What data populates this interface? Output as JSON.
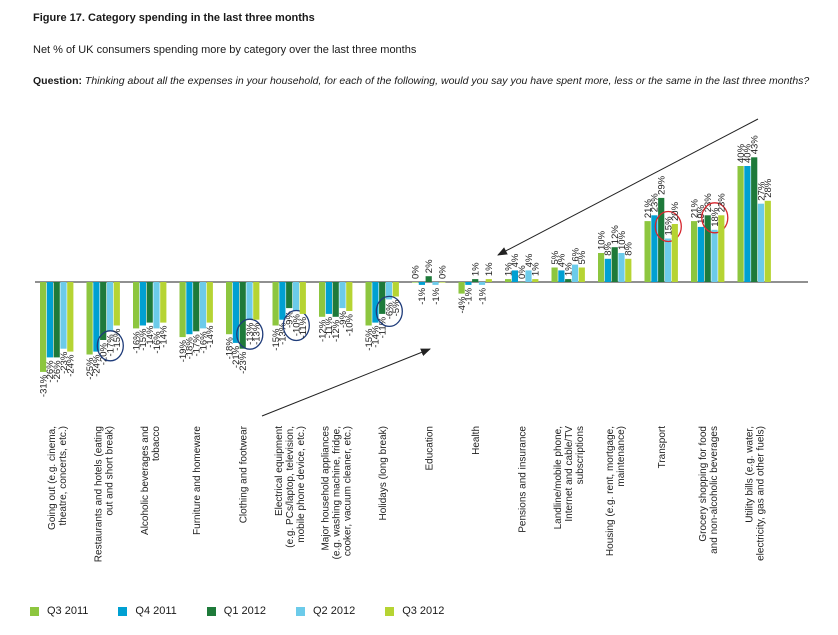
{
  "header": {
    "title": "Figure 17. Category spending in the last three months",
    "subtitle": "Net % of UK consumers spending more by category over the last three months",
    "question_label": "Question:",
    "question_text": "Thinking about all the expenses in your household, for each of the following, would you say you have spent more, less or the same in the last three months?"
  },
  "chart_data": {
    "type": "bar",
    "title": "Figure 17. Category spending in the last three months",
    "categories": [
      "Going out (e.g. cinema, theatre, concerts, etc.)",
      "Restaurants and hotels (eating out and short break)",
      "Alcoholic beverages and tobacco",
      "Furniture and homeware",
      "Clothing and footwear",
      "Electrical equipment (e.g. PCs/laptop, television, mobile phone device, etc.)",
      "Major household appliances (e.g. washing machine, fridge, cooker, vacuum cleaner, etc.)",
      "Holidays (long break)",
      "Education",
      "Health",
      "Pensions and insurance",
      "Landline/mobile phone, Internet and cable/TV subscriptions",
      "Housing (e.g. rent, mortgage, maintenance)",
      "Transport",
      "Grocery shopping for food and non-alcoholic beverages",
      "Utility bills (e.g. water, electricity, gas and other fuels)"
    ],
    "category_lines": [
      [
        "Going out (e.g. cinema,",
        "theatre, concerts, etc.)"
      ],
      [
        "Restaurants and hotels (eating",
        "out and short break)"
      ],
      [
        "Alcoholic beverages and",
        "tobacco"
      ],
      [
        "Furniture and homeware"
      ],
      [
        "Clothing and footwear"
      ],
      [
        "Electrical equipment",
        "(e.g. PCs/laptop, television,",
        "mobile phone device, etc.)"
      ],
      [
        "Major household appliances",
        "(e.g. washing machine, fridge,",
        "cooker, vacuum cleaner, etc.)"
      ],
      [
        "Holidays (long break)"
      ],
      [
        "Education"
      ],
      [
        "Health"
      ],
      [
        "Pensions and insurance"
      ],
      [
        "Landline/mobile phone,",
        "Internet and cable/TV",
        "subscriptions"
      ],
      [
        "Housing (e.g. rent, mortgage,",
        "maintenance)"
      ],
      [
        "Transport"
      ],
      [
        "Grocery shopping for food",
        "and non-alcoholic beverages"
      ],
      [
        "Utility bills (e.g. water,",
        "electricity, gas and other fuels)"
      ]
    ],
    "series": [
      {
        "name": "Q3 2011",
        "color": "#8dc63f",
        "values": [
          -31,
          -25,
          -16,
          -19,
          -18,
          -15,
          -12,
          -15,
          0,
          -4,
          1,
          5,
          10,
          21,
          21,
          40
        ]
      },
      {
        "name": "Q4 2011",
        "color": "#00a0d2",
        "values": [
          -26,
          -24,
          -15,
          -18,
          -21,
          -13,
          -11,
          -14,
          -1,
          -1,
          4,
          4,
          8,
          23,
          19,
          40
        ]
      },
      {
        "name": "Q1 2012",
        "color": "#1e7a3a",
        "values": [
          -26,
          -20,
          -14,
          -17,
          -23,
          -9,
          -12,
          -11,
          2,
          1,
          0,
          1,
          12,
          29,
          23,
          43
        ]
      },
      {
        "name": "Q2 2012",
        "color": "#6ccbea",
        "values": [
          -23,
          -17,
          -16,
          -16,
          -13,
          -10,
          -9,
          -6,
          -1,
          -1,
          4,
          6,
          10,
          15,
          18,
          27
        ]
      },
      {
        "name": "Q3 2012",
        "color": "#b6d433",
        "values": [
          -24,
          -15,
          -14,
          -14,
          -13,
          -11,
          -10,
          -5,
          0,
          1,
          1,
          5,
          8,
          20,
          23,
          28
        ]
      }
    ],
    "circled": [
      [
        1,
        3
      ],
      [
        4,
        3
      ],
      [
        5,
        3
      ],
      [
        7,
        3
      ],
      [
        13,
        3
      ],
      [
        14,
        3
      ]
    ],
    "ylim": [
      -34,
      46
    ],
    "grid": false,
    "legend_position": "bottom"
  }
}
